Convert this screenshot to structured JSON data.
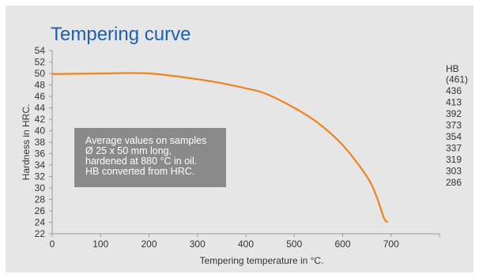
{
  "chart_data": {
    "type": "line",
    "title": "Tempering curve",
    "xlabel": "Tempering temperature in °C.",
    "ylabel": "Hardness in HRC.",
    "xlim": [
      0,
      800
    ],
    "ylim": [
      22,
      54
    ],
    "x_ticks": [
      "0",
      "100",
      "200",
      "300",
      "400",
      "500",
      "600",
      "700"
    ],
    "y_ticks": [
      "54",
      "52",
      "50",
      "48",
      "46",
      "44",
      "42",
      "40",
      "38",
      "36",
      "34",
      "32",
      "30",
      "28",
      "26",
      "24",
      "22"
    ],
    "right_axis_title": "HB",
    "right_axis_labels": [
      {
        "hrc": 49,
        "label": "(461)"
      },
      {
        "hrc": 47,
        "label": "436"
      },
      {
        "hrc": 45,
        "label": "413"
      },
      {
        "hrc": 43,
        "label": "392"
      },
      {
        "hrc": 41,
        "label": "373"
      },
      {
        "hrc": 39,
        "label": "354"
      },
      {
        "hrc": 37,
        "label": "337"
      },
      {
        "hrc": 35,
        "label": "319"
      },
      {
        "hrc": 33,
        "label": "303"
      },
      {
        "hrc": 31,
        "label": "286"
      }
    ],
    "grid": false,
    "series": [
      {
        "color": "#f0831e",
        "x": [
          0,
          100,
          200,
          300,
          350,
          400,
          440,
          500,
          550,
          600,
          650,
          670,
          685,
          693
        ],
        "y": [
          49.9,
          50.0,
          50.0,
          49.0,
          48.3,
          47.4,
          46.5,
          44.0,
          41.3,
          37.5,
          32.0,
          28.5,
          24.8,
          24.0
        ]
      }
    ],
    "annotation": {
      "lines": [
        "Average values on samples",
        "Ø 25 x 50 mm long,",
        "hardened at 880 °C in oil.",
        "HB converted from HRC."
      ]
    }
  }
}
